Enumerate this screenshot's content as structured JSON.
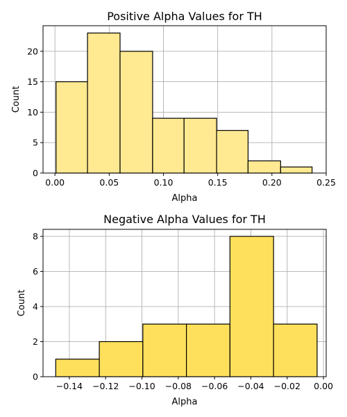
{
  "chart_data": [
    {
      "type": "bar",
      "title": "Positive Alpha Values for TH",
      "xlabel": "Alpha",
      "ylabel": "Count",
      "bin_edges": [
        0.001,
        0.03,
        0.06,
        0.09,
        0.119,
        0.149,
        0.178,
        0.208,
        0.237
      ],
      "values": [
        15,
        23,
        20,
        9,
        9,
        7,
        2,
        1
      ],
      "xlim": [
        -0.011,
        0.25
      ],
      "ylim": [
        0,
        24.2
      ],
      "xticks": [
        0.0,
        0.05,
        0.1,
        0.15,
        0.2,
        0.25
      ],
      "xtick_labels": [
        "0.00",
        "0.05",
        "0.10",
        "0.15",
        "0.20",
        "0.25"
      ],
      "yticks": [
        0,
        5,
        10,
        15,
        20
      ],
      "ytick_labels": [
        "0",
        "5",
        "10",
        "15",
        "20"
      ],
      "grid": true,
      "bar_color": "#ffe991"
    },
    {
      "type": "bar",
      "title": "Negative Alpha Values for TH",
      "xlabel": "Alpha",
      "ylabel": "Count",
      "bin_edges": [
        -0.1475,
        -0.1235,
        -0.0995,
        -0.0755,
        -0.0515,
        -0.0275,
        -0.0035
      ],
      "values": [
        1,
        2,
        3,
        3,
        8,
        3
      ],
      "xlim": [
        -0.1545,
        0.0015
      ],
      "ylim": [
        0,
        8.4
      ],
      "xticks": [
        -0.14,
        -0.12,
        -0.1,
        -0.08,
        -0.06,
        -0.04,
        -0.02,
        0.0
      ],
      "xtick_labels": [
        "−0.14",
        "−0.12",
        "−0.10",
        "−0.08",
        "−0.06",
        "−0.04",
        "−0.02",
        "0.00"
      ],
      "yticks": [
        0,
        2,
        4,
        6,
        8
      ],
      "ytick_labels": [
        "0",
        "2",
        "4",
        "6",
        "8"
      ],
      "grid": true,
      "bar_color": "#ffe05c"
    }
  ]
}
